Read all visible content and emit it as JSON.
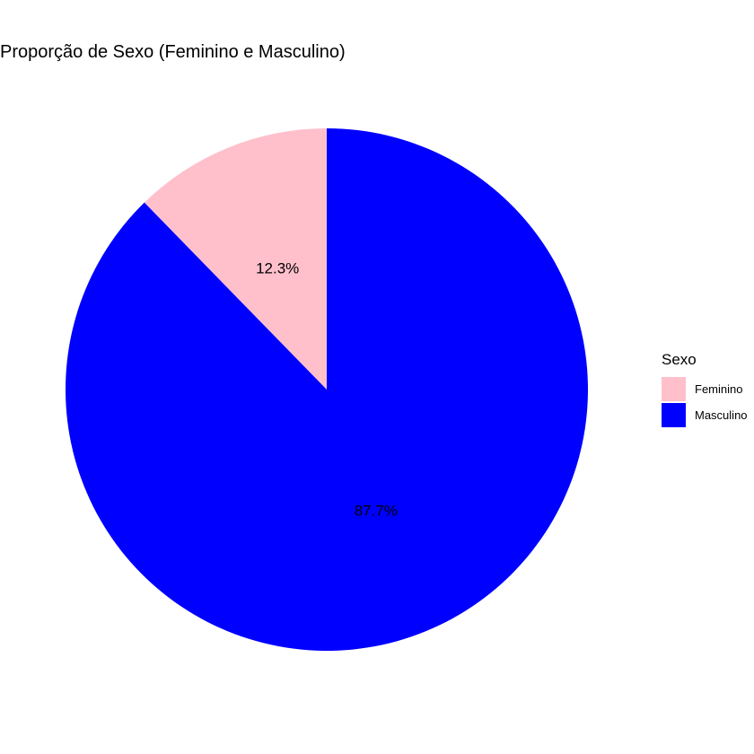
{
  "chart_data": {
    "type": "pie",
    "title": "Proporção de Sexo (Feminino e Masculino)",
    "categories": [
      "Feminino",
      "Masculino"
    ],
    "values": [
      12.3,
      87.7
    ],
    "labels": [
      "12.3%",
      "87.7%"
    ],
    "colors": [
      "#FFC0CB",
      "#0000FF"
    ],
    "start_angle_deg": 0,
    "direction": "counterclockwise",
    "legend": {
      "title": "Sexo",
      "position": "right"
    },
    "grid": false
  }
}
